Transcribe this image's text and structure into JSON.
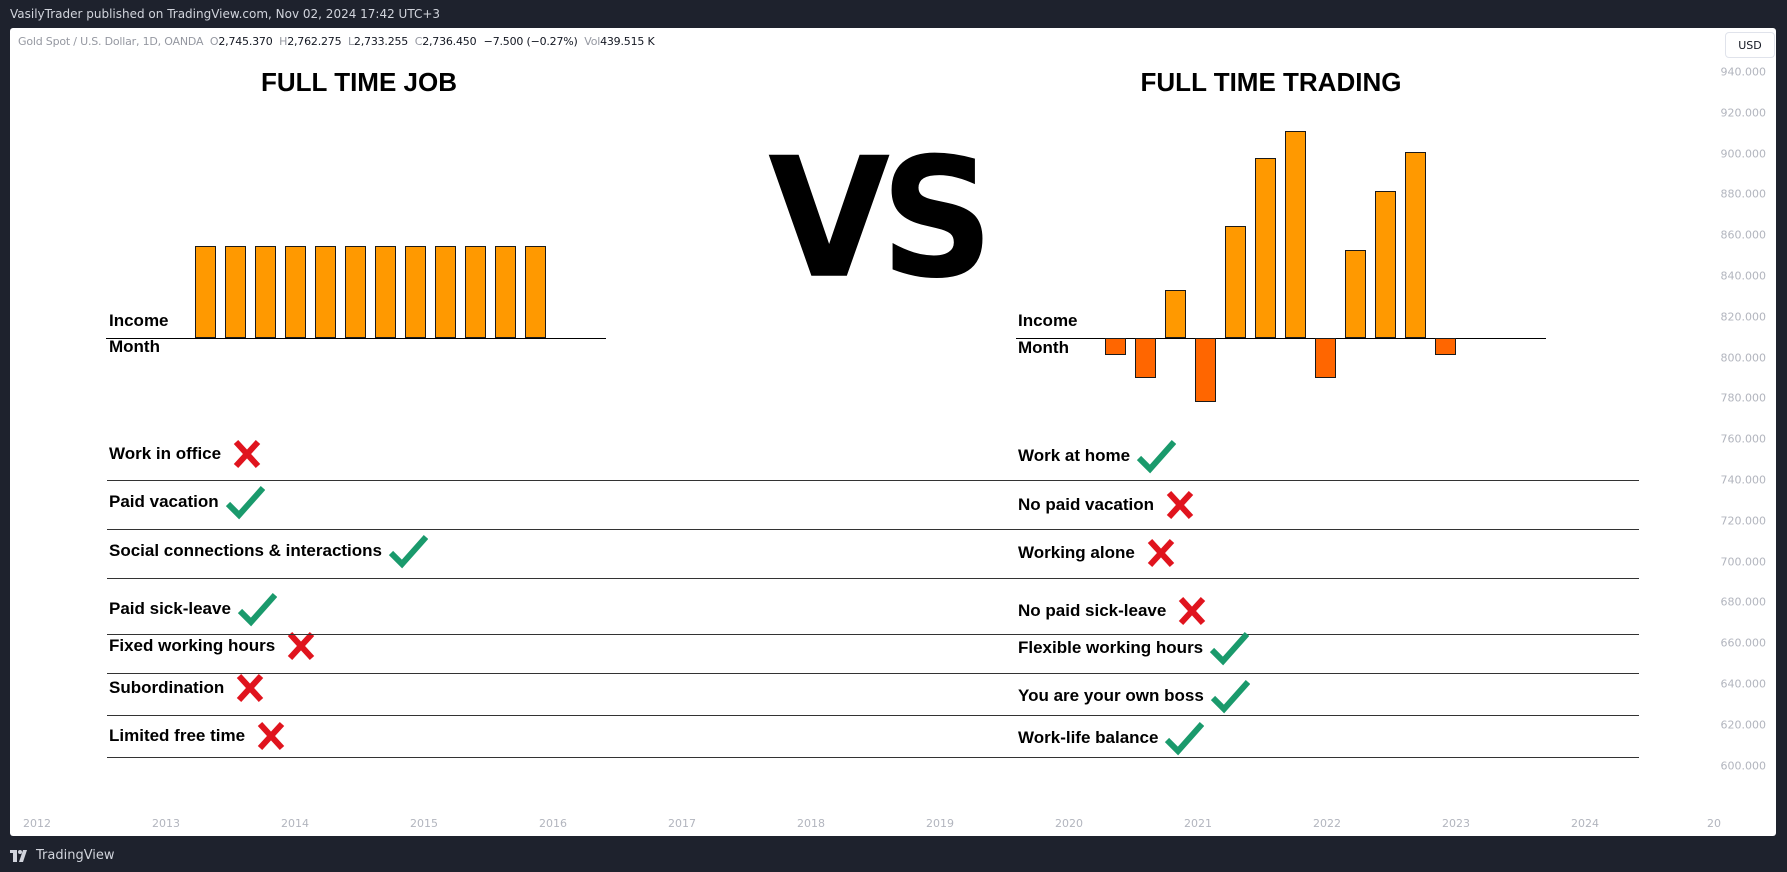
{
  "topbar": {
    "published": "VasilyTrader published on TradingView.com, Nov 02, 2024 17:42 UTC+3"
  },
  "bottombar": {
    "logo_text": "TradingView"
  },
  "legend": {
    "symbol": "Gold Spot / U.S. Dollar, 1D, OANDA",
    "o_label": "O",
    "o_value": "2,745.370",
    "h_label": "H",
    "h_value": "2,762.275",
    "l_label": "L",
    "l_value": "2,733.255",
    "c_label": "C",
    "c_value": "2,736.450",
    "change": "−7.500 (−0.27%)",
    "vol_label": "Vol",
    "vol_value": "439.515 K"
  },
  "currency_button": "USD",
  "price_axis": [
    "940.000",
    "920.000",
    "900.000",
    "880.000",
    "860.000",
    "840.000",
    "820.000",
    "800.000",
    "780.000",
    "760.000",
    "740.000",
    "720.000",
    "700.000",
    "680.000",
    "660.000",
    "640.000",
    "620.000",
    "600.000"
  ],
  "time_axis": [
    "2012",
    "2013",
    "2014",
    "2015",
    "2016",
    "2017",
    "2018",
    "2019",
    "2020",
    "2021",
    "2022",
    "2023",
    "2024",
    "20"
  ],
  "comparison": {
    "vs_text": "VS",
    "colors": {
      "positive_bar": "#ff9900",
      "negative_bar": "#ff6600",
      "check": "#1a9a6c",
      "cross": "#e0141e"
    },
    "left": {
      "title": "FULL TIME JOB",
      "income_label": "Income",
      "month_label": "Month",
      "bars": [
        1,
        1,
        1,
        1,
        1,
        1,
        1,
        1,
        1,
        1,
        1,
        1
      ],
      "items": [
        {
          "text": "Work in office",
          "mark": "cross-icon"
        },
        {
          "text": "Paid vacation",
          "mark": "check-icon"
        },
        {
          "text": "Social connections & interactions",
          "mark": "check-icon"
        },
        {
          "text": "Paid sick-leave",
          "mark": "check-icon"
        },
        {
          "text": "Fixed working hours",
          "mark": "cross-icon"
        },
        {
          "text": "Subordination",
          "mark": "cross-icon"
        },
        {
          "text": "Limited free time",
          "mark": "cross-icon"
        }
      ]
    },
    "right": {
      "title": "FULL TIME TRADING",
      "income_label": "Income",
      "month_label": "Month",
      "bars": [
        -0.19,
        -0.44,
        0.52,
        -0.7,
        1.22,
        1.96,
        2.25,
        -0.44,
        0.96,
        1.6,
        2.02,
        -0.19
      ],
      "items": [
        {
          "text": "Work at home",
          "mark": "check-icon"
        },
        {
          "text": "No paid vacation",
          "mark": "cross-icon"
        },
        {
          "text": "Working alone",
          "mark": "cross-icon"
        },
        {
          "text": "No paid sick-leave",
          "mark": "cross-icon"
        },
        {
          "text": "Flexible working hours",
          "mark": "check-icon"
        },
        {
          "text": "You are your own boss",
          "mark": "check-icon"
        },
        {
          "text": "Work-life balance",
          "mark": "check-icon"
        }
      ]
    }
  }
}
